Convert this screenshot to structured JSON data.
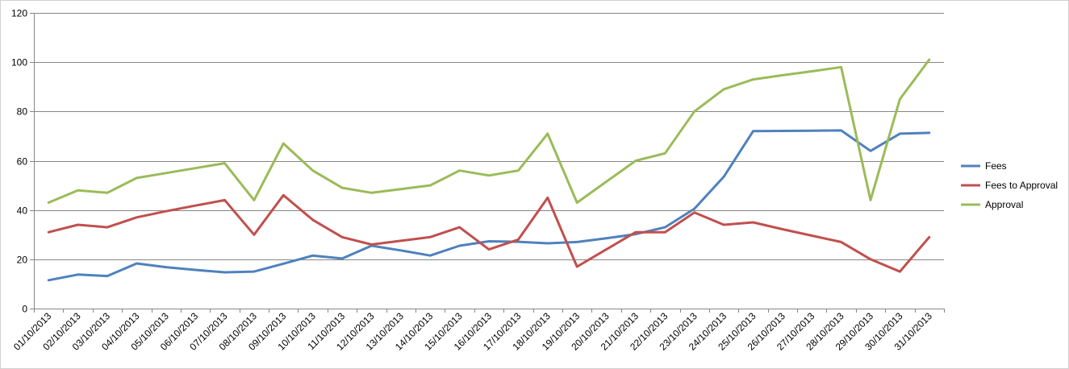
{
  "chart_data": {
    "type": "line",
    "title": "",
    "xlabel": "",
    "ylabel": "",
    "ylim": [
      0,
      120
    ],
    "yticks": [
      0,
      20,
      40,
      60,
      80,
      100,
      120
    ],
    "grid": true,
    "legend_position": "right",
    "categories": [
      "01/10/2013",
      "02/10/2013",
      "03/10/2013",
      "04/10/2013",
      "05/10/2013",
      "06/10/2013",
      "07/10/2013",
      "08/10/2013",
      "09/10/2013",
      "10/10/2013",
      "11/10/2013",
      "12/10/2013",
      "13/10/2013",
      "14/10/2013",
      "15/10/2013",
      "16/10/2013",
      "17/10/2013",
      "18/10/2013",
      "19/10/2013",
      "20/10/2013",
      "21/10/2013",
      "22/10/2013",
      "23/10/2013",
      "24/10/2013",
      "25/10/2013",
      "26/10/2013",
      "27/10/2013",
      "28/10/2013",
      "29/10/2013",
      "30/10/2013",
      "31/10/2013"
    ],
    "series": [
      {
        "name": "Fees",
        "color": "#4f81bd",
        "values": [
          11.5,
          13.8,
          13.2,
          18.3,
          16.8,
          15.7,
          14.7,
          15.0,
          18.2,
          21.5,
          20.3,
          25.5,
          23.6,
          21.5,
          25.5,
          27.3,
          27.1,
          26.5,
          27.0,
          28.5,
          30.2,
          33.0,
          40.5,
          53.5,
          72.0,
          72.1,
          72.2,
          72.3,
          64.0,
          71.0,
          71.3
        ]
      },
      {
        "name": "Fees to Approval",
        "color": "#c0504d",
        "values": [
          31,
          34,
          33,
          37,
          39.5,
          41.8,
          44,
          30,
          46,
          36,
          29,
          26,
          27.5,
          29,
          33,
          24,
          28,
          45,
          17,
          24,
          31,
          31,
          39,
          34,
          35,
          32.2,
          29.6,
          27,
          20,
          15,
          29
        ]
      },
      {
        "name": "Approval",
        "color": "#9bbb59",
        "values": [
          43,
          48,
          47,
          53,
          55,
          57,
          59,
          44,
          67,
          56,
          49,
          47,
          48.5,
          50,
          56,
          54,
          56,
          71,
          43,
          51.5,
          60,
          63,
          80,
          89,
          93,
          94.7,
          96.3,
          98,
          44,
          85,
          101
        ]
      }
    ]
  }
}
